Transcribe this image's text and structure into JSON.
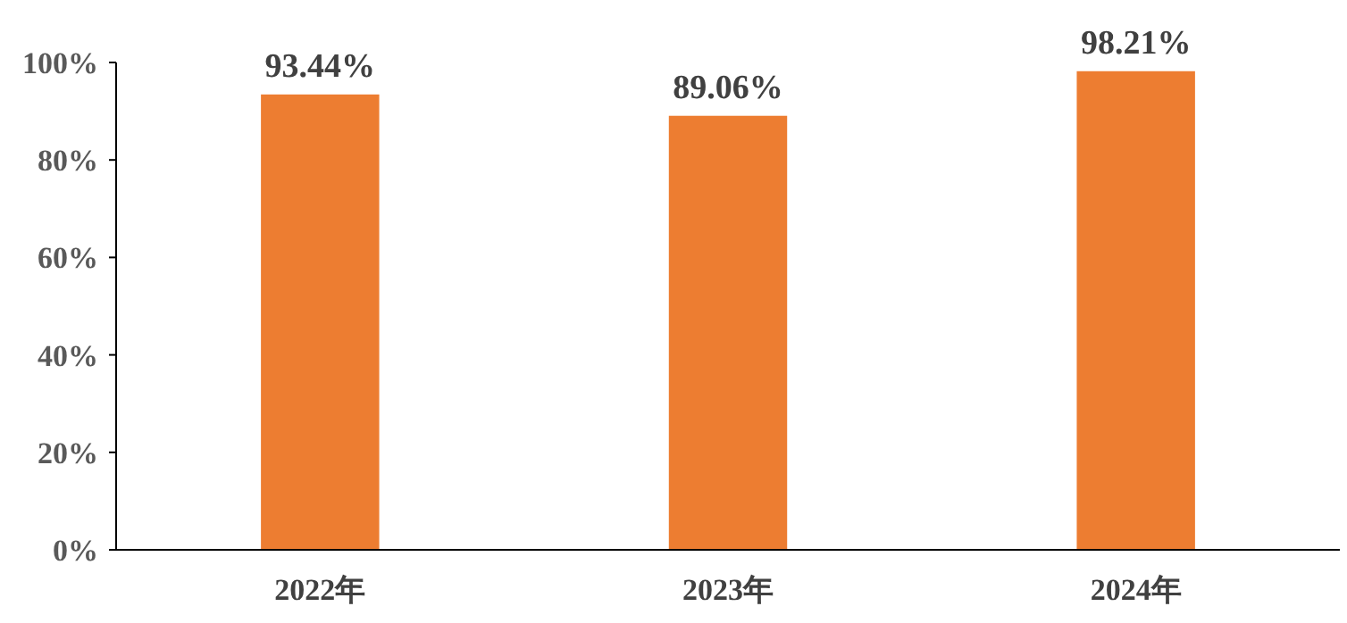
{
  "chart_data": {
    "type": "bar",
    "categories": [
      "2022年",
      "2023年",
      "2024年"
    ],
    "values": [
      93.44,
      89.06,
      98.21
    ],
    "color": "#ed7d31",
    "value_labels": [
      "93.44%",
      "89.06%",
      "98.21%"
    ],
    "ylim": [
      0,
      100
    ],
    "yticks": [
      {
        "value": 0,
        "label": "0%"
      },
      {
        "value": 20,
        "label": "20%"
      },
      {
        "value": 40,
        "label": "40%"
      },
      {
        "value": 60,
        "label": "60%"
      },
      {
        "value": 80,
        "label": "80%"
      },
      {
        "value": 100,
        "label": "100%"
      }
    ],
    "grid": false
  }
}
